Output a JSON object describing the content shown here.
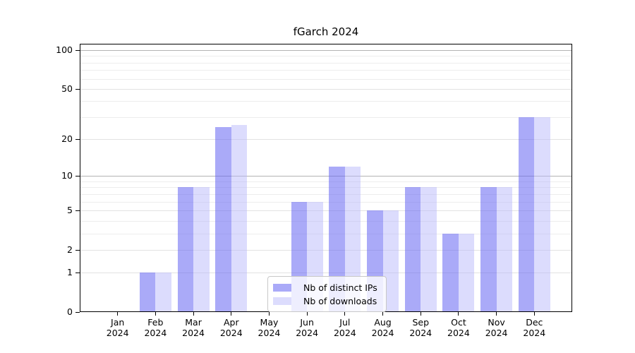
{
  "chart_data": {
    "type": "bar",
    "title": "fGarch 2024",
    "x_tick_labels": [
      [
        "Jan",
        "2024"
      ],
      [
        "Feb",
        "2024"
      ],
      [
        "Mar",
        "2024"
      ],
      [
        "Apr",
        "2024"
      ],
      [
        "May",
        "2024"
      ],
      [
        "Jun",
        "2024"
      ],
      [
        "Jul",
        "2024"
      ],
      [
        "Aug",
        "2024"
      ],
      [
        "Sep",
        "2024"
      ],
      [
        "Oct",
        "2024"
      ],
      [
        "Nov",
        "2024"
      ],
      [
        "Dec",
        "2024"
      ]
    ],
    "series": [
      {
        "name": "Nb of distinct IPs",
        "color": "#aaaaf8",
        "fill": "rgba(100,100,242,0.55)",
        "values": [
          0,
          1,
          8,
          25,
          0,
          6,
          12,
          5,
          8,
          3,
          8,
          30
        ]
      },
      {
        "name": "Nb of downloads",
        "color": "#dcdcf8",
        "fill": "rgba(180,180,250,0.47)",
        "values": [
          0,
          1,
          8,
          26,
          0,
          6,
          12,
          5,
          8,
          3,
          8,
          30
        ]
      }
    ],
    "y_axis": {
      "scale": "log10(1+v)",
      "ticks": [
        0,
        1,
        2,
        5,
        10,
        20,
        50,
        100
      ],
      "major_gridlines": [
        10,
        100
      ],
      "minor_gridlines": [
        3,
        4,
        6,
        7,
        8,
        9,
        30,
        40,
        60,
        70,
        80,
        90
      ],
      "range": [
        0,
        112
      ]
    },
    "legend_position": "lower center",
    "grid": "on"
  },
  "colors": {
    "major_grid": "#b3b3b3",
    "tick_grid": "#e2e2e2",
    "minor_grid": "#ededed",
    "axis": "#000000",
    "background": "#ffffff"
  }
}
